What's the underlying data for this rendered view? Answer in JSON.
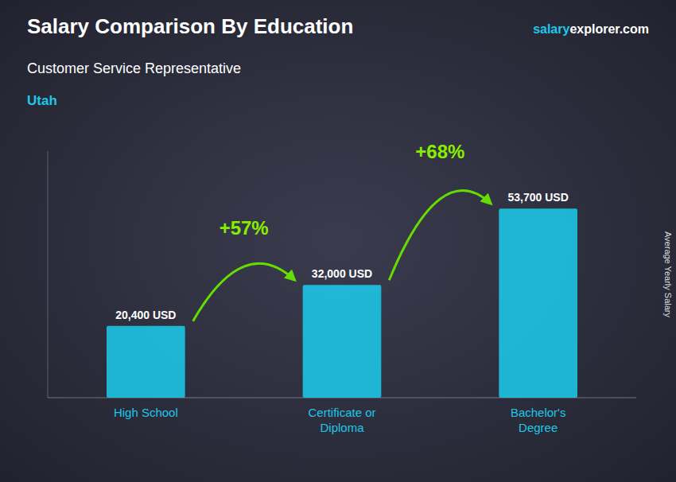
{
  "chart_data": {
    "type": "bar",
    "title": "Salary Comparison By Education",
    "subtitle": "Customer Service Representative",
    "region": "Utah",
    "brand": [
      "salary",
      "explorer.com"
    ],
    "ylabel": "Average Yearly Salary",
    "categories": [
      "High School",
      "Certificate or\nDiploma",
      "Bachelor's\nDegree"
    ],
    "values": [
      20400,
      32000,
      53700
    ],
    "value_labels": [
      "20,400 USD",
      "32,000 USD",
      "53,700 USD"
    ],
    "data_labels": true,
    "annotations": [
      "+57%",
      "+68%"
    ],
    "color": "#1dc8e8",
    "ylim": [
      0,
      70000
    ],
    "grid": false,
    "tick_labels": "x"
  }
}
